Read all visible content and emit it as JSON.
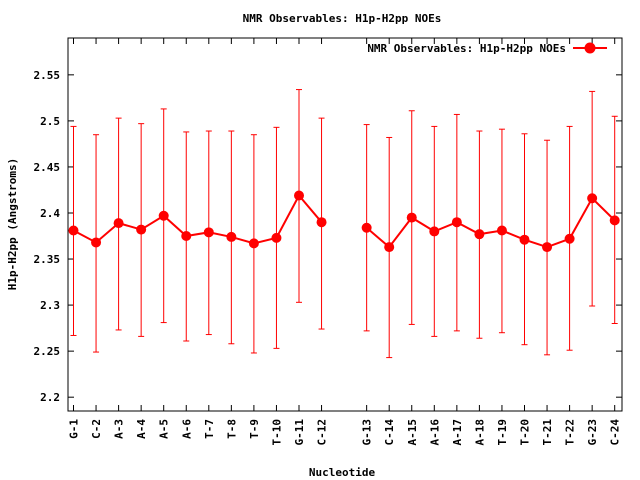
{
  "chart_data": {
    "type": "line",
    "title": "NMR Observables: H1p-H2pp NOEs",
    "xlabel": "Nucleotide",
    "ylabel": "H1p-H2pp (Angstroms)",
    "ylim": [
      2.185,
      2.59
    ],
    "yticks": [
      "2.2",
      "2.25",
      "2.3",
      "2.35",
      "2.4",
      "2.45",
      "2.5",
      "2.55"
    ],
    "grid": false,
    "legend_position": "top-right",
    "series": [
      {
        "name": "NMR Observables: H1p-H2pp NOEs",
        "color": "#ff0000",
        "segments": [
          {
            "categories": [
              "G-1",
              "C-2",
              "A-3",
              "A-4",
              "A-5",
              "A-6",
              "T-7",
              "T-8",
              "T-9",
              "T-10",
              "G-11",
              "C-12"
            ],
            "values": [
              2.381,
              2.368,
              2.389,
              2.382,
              2.397,
              2.375,
              2.379,
              2.374,
              2.367,
              2.373,
              2.419,
              2.39
            ],
            "err_low": [
              2.267,
              2.249,
              2.273,
              2.266,
              2.281,
              2.261,
              2.268,
              2.258,
              2.248,
              2.253,
              2.303,
              2.274
            ],
            "err_high": [
              2.494,
              2.485,
              2.503,
              2.497,
              2.513,
              2.488,
              2.489,
              2.489,
              2.485,
              2.493,
              2.534,
              2.503
            ]
          },
          {
            "categories": [
              "G-13",
              "C-14",
              "A-15",
              "A-16",
              "A-17",
              "A-18",
              "T-19",
              "T-20",
              "T-21",
              "T-22",
              "G-23",
              "C-24"
            ],
            "values": [
              2.384,
              2.363,
              2.395,
              2.38,
              2.39,
              2.377,
              2.381,
              2.371,
              2.363,
              2.372,
              2.416,
              2.392
            ],
            "err_low": [
              2.272,
              2.243,
              2.279,
              2.266,
              2.272,
              2.264,
              2.27,
              2.257,
              2.246,
              2.251,
              2.299,
              2.28
            ],
            "err_high": [
              2.496,
              2.482,
              2.511,
              2.494,
              2.507,
              2.489,
              2.491,
              2.486,
              2.479,
              2.494,
              2.532,
              2.505
            ]
          }
        ]
      }
    ]
  }
}
